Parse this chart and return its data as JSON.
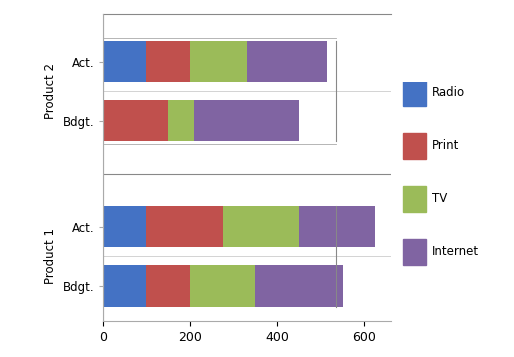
{
  "series_names": [
    "Radio",
    "Print",
    "TV",
    "Internet"
  ],
  "colors": {
    "Radio": "#4472C4",
    "Print": "#C0504D",
    "TV": "#9BBB59",
    "Internet": "#8064A2"
  },
  "rows": [
    {
      "label": "Act.",
      "group": "Product 2",
      "Radio": 100,
      "Print": 100,
      "TV": 130,
      "Internet": 185
    },
    {
      "label": "Bdgt.",
      "group": "Product 2",
      "Radio": 0,
      "Print": 150,
      "TV": 60,
      "Internet": 240
    },
    {
      "label": "Act.",
      "group": "Product 1",
      "Radio": 100,
      "Print": 175,
      "TV": 175,
      "Internet": 175
    },
    {
      "label": "Bdgt.",
      "group": "Product 1",
      "Radio": 100,
      "Print": 100,
      "TV": 150,
      "Internet": 200
    }
  ],
  "xlim": [
    0,
    660
  ],
  "xticks": [
    0,
    200,
    400,
    600
  ],
  "background": "#ffffff"
}
